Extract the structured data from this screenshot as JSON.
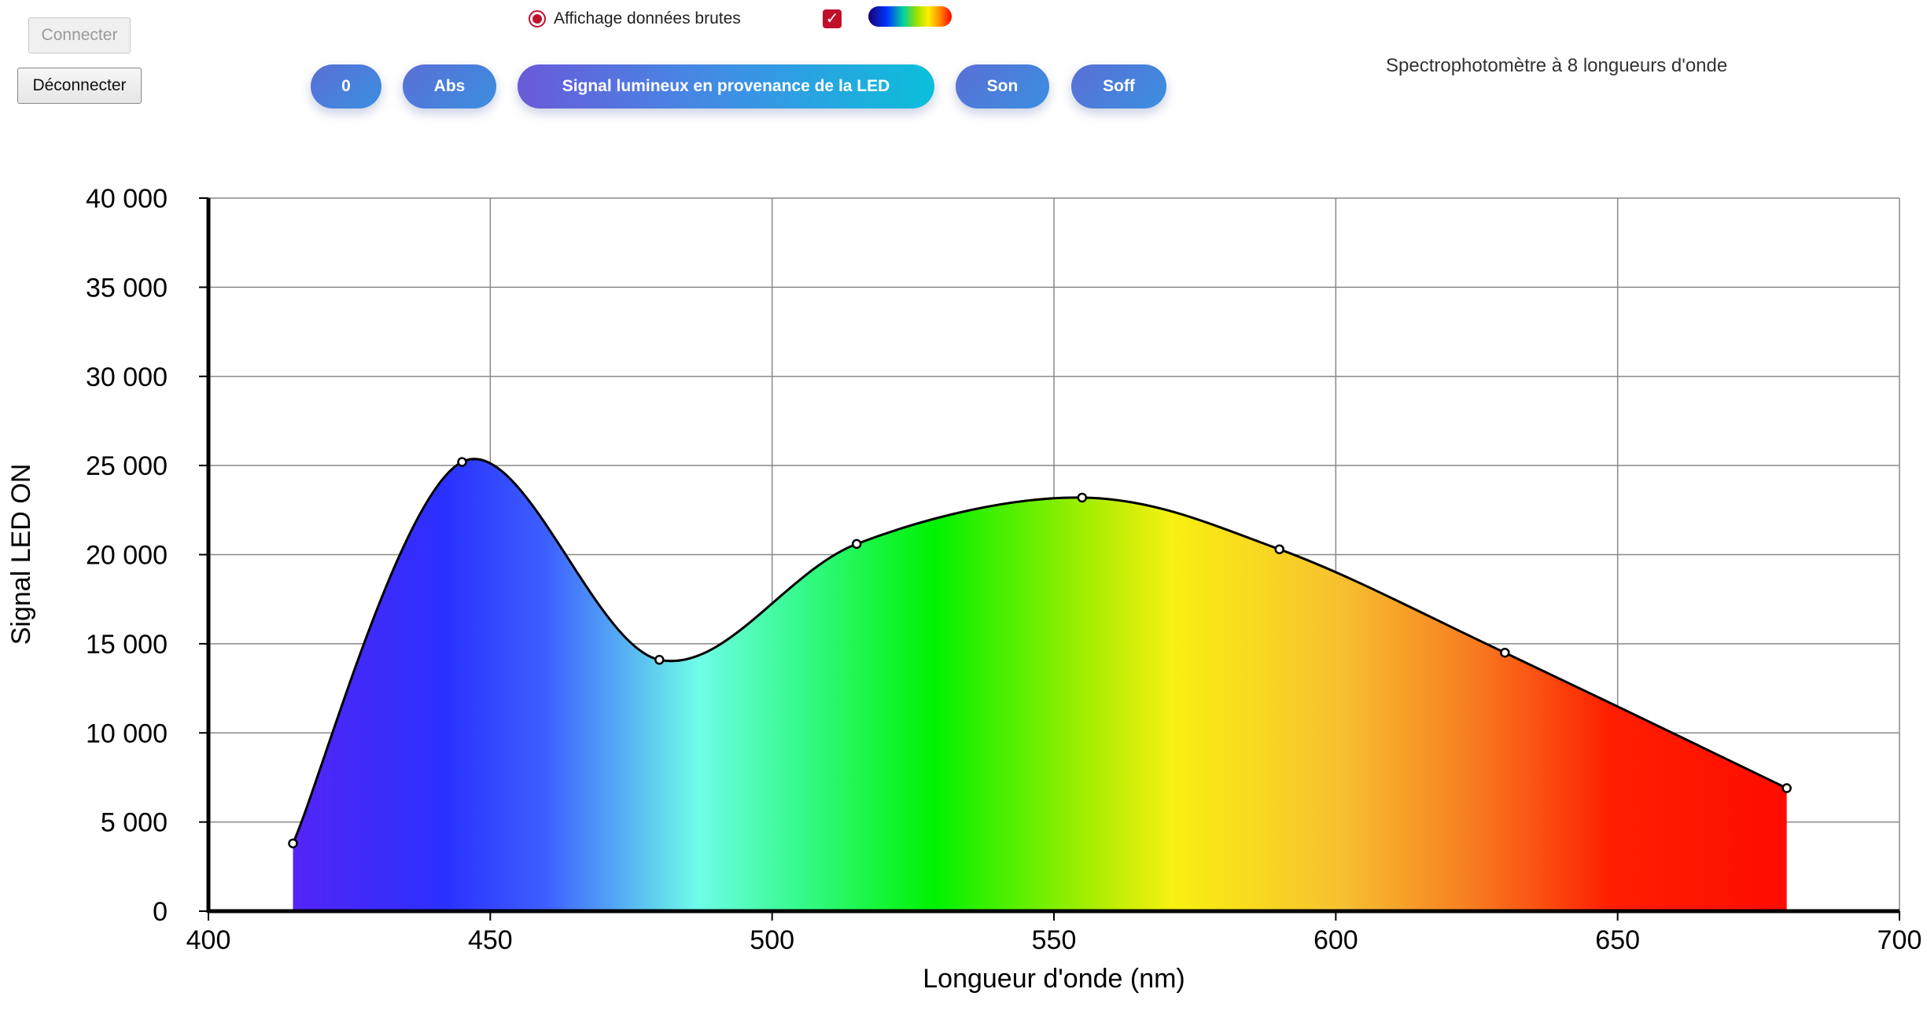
{
  "app": {
    "title": "Spectrophotomètre à 8 longueurs d'onde"
  },
  "connection": {
    "connect_label": "Connecter",
    "disconnect_label": "Déconnecter"
  },
  "display_options": {
    "raw_data_label": "Affichage données brutes",
    "raw_data_selected": true,
    "checkbox_checked": true,
    "spectrum_icon": "spectrum-gradient-icon"
  },
  "toolbar": {
    "zero_label": "0",
    "abs_label": "Abs",
    "signal_label": "Signal lumineux en provenance de la LED",
    "son_label": "Son",
    "soff_label": "Soff"
  },
  "colors": {
    "accent_red": "#c0102a",
    "pill_blue": "#3a8fe0",
    "pill_violet": "#6a5ad8",
    "pill_cyan": "#0bbfda"
  },
  "chart_data": {
    "type": "area",
    "xlabel": "Longueur d'onde (nm)",
    "ylabel": "Signal LED ON",
    "xlim": [
      400,
      700
    ],
    "ylim": [
      0,
      40000
    ],
    "x_ticks": [
      400,
      450,
      500,
      550,
      600,
      650,
      700
    ],
    "x_tick_labels": [
      "400",
      "450",
      "500",
      "550",
      "600",
      "650",
      "700"
    ],
    "y_ticks": [
      0,
      5000,
      10000,
      15000,
      20000,
      25000,
      30000,
      35000,
      40000
    ],
    "y_tick_labels": [
      "0",
      "5 000",
      "10 000",
      "15 000",
      "20 000",
      "25 000",
      "30 000",
      "35 000",
      "40 000"
    ],
    "grid": true,
    "fill": "visible-spectrum-gradient",
    "series": [
      {
        "x": [
          415,
          445,
          480,
          515,
          555,
          590,
          630,
          680
        ],
        "y": [
          3800,
          25200,
          14100,
          20600,
          23200,
          20300,
          14500,
          6900
        ]
      }
    ]
  }
}
